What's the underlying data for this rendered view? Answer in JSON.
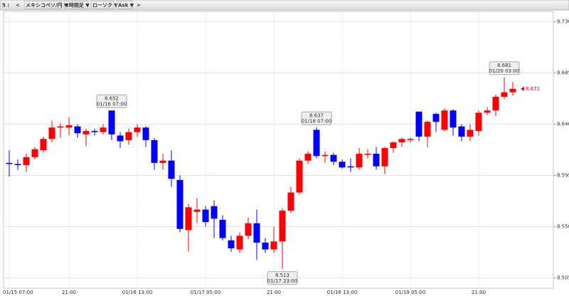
{
  "toolbar": {
    "items": [
      "5 :",
      "<",
      "メキシコペソ/円 ▼",
      "2時間足 ▼",
      "ローソク ▼",
      "Ask ▼",
      ">"
    ]
  },
  "chart_data": {
    "type": "candlestick",
    "categories": [
      "01/15 07:00",
      null,
      null,
      null,
      null,
      null,
      null,
      "21:00",
      null,
      null,
      null,
      null,
      null,
      null,
      null,
      "01/16 13:00",
      null,
      null,
      null,
      null,
      null,
      null,
      null,
      "01/17 05:00",
      null,
      null,
      null,
      null,
      null,
      null,
      null,
      "21:00",
      null,
      null,
      null,
      null,
      null,
      null,
      null,
      "01/18 13:00",
      null,
      null,
      null,
      null,
      null,
      null,
      null,
      "01/19 05:00",
      null,
      null,
      null,
      null,
      null,
      null,
      null,
      "21:00",
      null,
      null,
      null,
      null
    ],
    "open": [
      8.606,
      8.605,
      8.604,
      8.611,
      8.617,
      8.627,
      8.637,
      8.637,
      8.638,
      8.631,
      8.634,
      8.633,
      8.652,
      8.63,
      8.626,
      8.633,
      8.637,
      8.626,
      8.606,
      8.608,
      8.591,
      8.547,
      8.563,
      8.565,
      8.568,
      8.556,
      8.538,
      8.53,
      8.542,
      8.553,
      8.536,
      8.53,
      8.537,
      8.564,
      8.58,
      8.608,
      8.635,
      8.612,
      8.613,
      8.607,
      8.603,
      8.602,
      8.613,
      8.614,
      8.603,
      8.619,
      8.624,
      8.626,
      8.651,
      8.629,
      8.649,
      8.635,
      8.652,
      8.638,
      8.629,
      8.634,
      8.65,
      8.652,
      8.664,
      8.668
    ],
    "high": [
      8.617,
      8.609,
      8.614,
      8.62,
      8.629,
      8.643,
      8.641,
      8.646,
      8.64,
      8.636,
      8.636,
      8.64,
      8.652,
      8.633,
      8.636,
      8.64,
      8.638,
      8.628,
      8.614,
      8.617,
      8.595,
      8.57,
      8.575,
      8.568,
      8.573,
      8.56,
      8.542,
      8.545,
      8.558,
      8.565,
      8.54,
      8.55,
      8.566,
      8.585,
      8.61,
      8.616,
      8.637,
      8.616,
      8.615,
      8.609,
      8.61,
      8.619,
      8.618,
      8.62,
      8.62,
      8.625,
      8.628,
      8.628,
      8.651,
      8.643,
      8.65,
      8.654,
      8.653,
      8.64,
      8.64,
      8.652,
      8.655,
      8.666,
      8.681,
      8.677
    ],
    "low": [
      8.594,
      8.6,
      8.598,
      8.609,
      8.615,
      8.624,
      8.628,
      8.63,
      8.628,
      8.621,
      8.63,
      8.631,
      8.626,
      8.619,
      8.622,
      8.629,
      8.62,
      8.6,
      8.6,
      8.585,
      8.545,
      8.528,
      8.553,
      8.55,
      8.54,
      8.538,
      8.528,
      8.527,
      8.539,
      8.521,
      8.527,
      8.527,
      8.513,
      8.562,
      8.578,
      8.605,
      8.61,
      8.606,
      8.604,
      8.601,
      8.598,
      8.6,
      8.61,
      8.6,
      8.596,
      8.615,
      8.62,
      8.624,
      8.625,
      8.62,
      8.633,
      8.634,
      8.63,
      8.625,
      8.625,
      8.63,
      8.648,
      8.647,
      8.662,
      8.665
    ],
    "close": [
      8.605,
      8.604,
      8.611,
      8.618,
      8.627,
      8.637,
      8.638,
      8.639,
      8.632,
      8.634,
      8.633,
      8.637,
      8.631,
      8.625,
      8.633,
      8.637,
      8.626,
      8.606,
      8.608,
      8.592,
      8.548,
      8.567,
      8.565,
      8.554,
      8.557,
      8.54,
      8.531,
      8.542,
      8.553,
      8.536,
      8.53,
      8.537,
      8.564,
      8.58,
      8.608,
      8.614,
      8.612,
      8.613,
      8.607,
      8.602,
      8.602,
      8.614,
      8.614,
      8.603,
      8.619,
      8.624,
      8.627,
      8.627,
      8.629,
      8.642,
      8.642,
      8.652,
      8.637,
      8.629,
      8.635,
      8.65,
      8.652,
      8.664,
      8.668,
      8.671
    ],
    "up_color": "#ff0000",
    "down_color": "#0000ff",
    "ylim": [
      8.496,
      8.739
    ],
    "yticks": [
      8.505,
      {
        "value": 8.55,
        "label": "8.550"
      },
      8.595,
      {
        "value": 8.64,
        "label": "8.640"
      },
      8.685,
      {
        "value": 8.73,
        "label": "8.730"
      }
    ],
    "grid": true,
    "annotations": [
      {
        "price": 8.652,
        "time": "01/16 07:00"
      },
      {
        "price": 8.513,
        "time": "01/17 23:00"
      },
      {
        "price": 8.637,
        "time": "01/18 07:00"
      },
      {
        "price": 8.681,
        "time": "01/20 03:00"
      }
    ],
    "last_price": 8.671
  }
}
